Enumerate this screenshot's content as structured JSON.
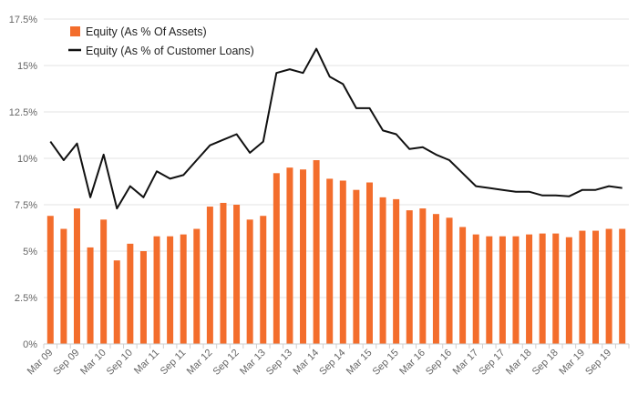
{
  "chart_data": {
    "type": "bar+line",
    "categories": [
      "Mar 09",
      "Jun 09",
      "Sep 09",
      "Dec 09",
      "Mar 10",
      "Jun 10",
      "Sep 10",
      "Dec 10",
      "Mar 11",
      "Jun 11",
      "Sep 11",
      "Dec 11",
      "Mar 12",
      "Jun 12",
      "Sep 12",
      "Dec 12",
      "Mar 13",
      "Jun 13",
      "Sep 13",
      "Dec 13",
      "Mar 14",
      "Jun 14",
      "Sep 14",
      "Dec 14",
      "Mar 15",
      "Jun 15",
      "Sep 15",
      "Dec 15",
      "Mar 16",
      "Jun 16",
      "Sep 16",
      "Dec 16",
      "Mar 17",
      "Jun 17",
      "Sep 17",
      "Dec 17",
      "Mar 18",
      "Jun 18",
      "Sep 18",
      "Dec 18",
      "Mar 19",
      "Jun 19",
      "Sep 19",
      "Dec 19"
    ],
    "x_tick_labels": [
      "Mar 09",
      "Sep 09",
      "Mar 10",
      "Sep 10",
      "Mar 11",
      "Sep 11",
      "Mar 12",
      "Sep 12",
      "Mar 13",
      "Sep 13",
      "Mar 14",
      "Sep 14",
      "Mar 15",
      "Sep 15",
      "Mar 16",
      "Sep 16",
      "Mar 17",
      "Sep 17",
      "Mar 18",
      "Sep 18",
      "Mar 19",
      "Sep 19"
    ],
    "y_tick_labels": [
      "0%",
      "2.5%",
      "5%",
      "7.5%",
      "10%",
      "12.5%",
      "15%",
      "17.5%"
    ],
    "ylim": [
      0,
      17.5
    ],
    "grid": true,
    "legend_position": "top-left",
    "series": [
      {
        "name": "Equity (As % Of Assets)",
        "type": "bar",
        "color": "#f36d2c",
        "values": [
          6.9,
          6.2,
          7.3,
          5.2,
          6.7,
          4.5,
          5.4,
          5.0,
          5.8,
          5.8,
          5.9,
          6.2,
          7.4,
          7.6,
          7.5,
          6.7,
          6.9,
          9.2,
          9.5,
          9.4,
          9.9,
          8.9,
          8.8,
          8.3,
          8.7,
          7.9,
          7.8,
          7.2,
          7.3,
          7.0,
          6.8,
          6.3,
          5.9,
          5.8,
          5.8,
          5.8,
          5.9,
          5.95,
          5.95,
          5.75,
          6.1,
          6.1,
          6.2,
          6.2
        ]
      },
      {
        "name": "Equity (As % of Customer Loans)",
        "type": "line",
        "color": "#111111",
        "values": [
          10.9,
          9.9,
          10.8,
          7.9,
          10.2,
          7.3,
          8.5,
          7.9,
          9.3,
          8.9,
          9.1,
          9.9,
          10.7,
          11.0,
          11.3,
          10.3,
          10.9,
          14.6,
          14.8,
          14.6,
          15.9,
          14.4,
          14.0,
          12.7,
          12.7,
          11.5,
          11.3,
          10.5,
          10.6,
          10.2,
          9.9,
          9.2,
          8.5,
          8.4,
          8.3,
          8.2,
          8.2,
          8.0,
          8.0,
          7.95,
          8.3,
          8.3,
          8.5,
          8.4
        ]
      }
    ]
  }
}
